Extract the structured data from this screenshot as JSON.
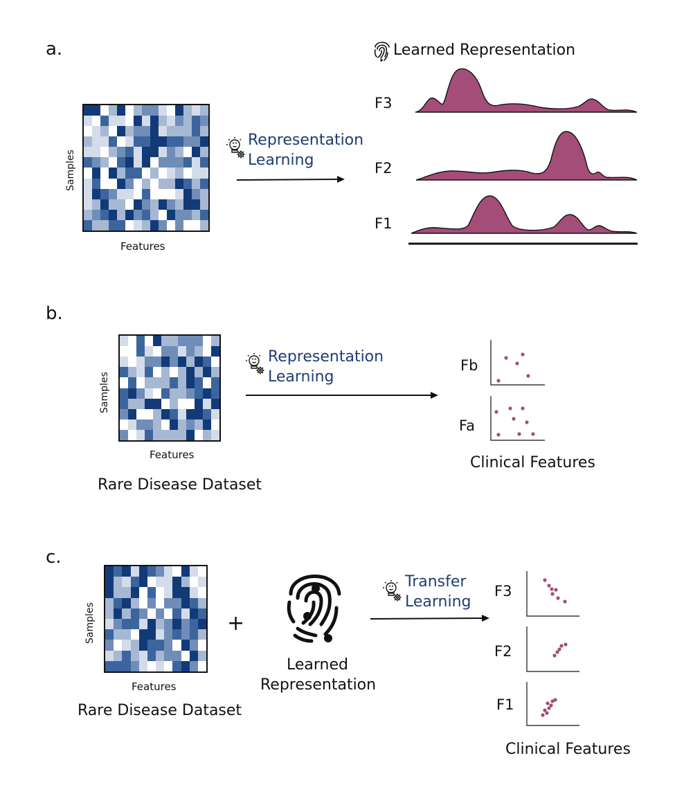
{
  "panels": {
    "a": {
      "label": "a.",
      "matrix": {
        "y_axis": "Samples",
        "x_axis": "Features"
      },
      "method": [
        "Representation",
        "Learning"
      ],
      "result_title": "Learned Representation",
      "ridges": [
        "F3",
        "F2",
        "F1"
      ]
    },
    "b": {
      "label": "b.",
      "matrix": {
        "y_axis": "Samples",
        "x_axis": "Features"
      },
      "dataset_caption": "Rare Disease Dataset",
      "method": [
        "Representation",
        "Learning"
      ],
      "plots": [
        "Fb",
        "Fa"
      ],
      "plots_caption": "Clinical Features"
    },
    "c": {
      "label": "c.",
      "matrix": {
        "y_axis": "Samples",
        "x_axis": "Features"
      },
      "dataset_caption": "Rare Disease Dataset",
      "plus": "+",
      "representation_caption": [
        "Learned",
        "Representation"
      ],
      "method": [
        "Transfer",
        "Learning"
      ],
      "plots": [
        "F3",
        "F2",
        "F1"
      ],
      "plots_caption": "Clinical Features"
    }
  },
  "colors": {
    "ridge_fill": "#a34d78",
    "point": "#a34d78",
    "method_text": "#1f3d73",
    "matrix_palette": [
      "#ffffff",
      "#d4dcea",
      "#a7b8d3",
      "#6f8db7",
      "#3c659e",
      "#123a78"
    ]
  },
  "icons": {
    "idea": "lightbulb-gear-icon",
    "fingerprint": "fingerprint-icon"
  }
}
